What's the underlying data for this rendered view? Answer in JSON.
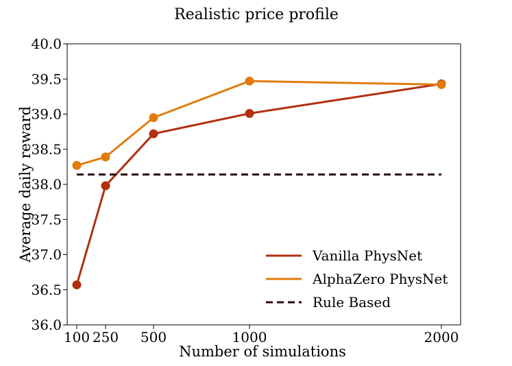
{
  "chart_data": {
    "type": "line",
    "title": "Realistic price profile",
    "xlabel": "Number of simulations",
    "ylabel": "Average daily reward",
    "x": [
      100,
      250,
      500,
      1000,
      2000
    ],
    "x_tick_labels": [
      "100",
      "250",
      "500",
      "1000",
      "2000"
    ],
    "xlim": [
      50,
      2100
    ],
    "ylim": [
      36.0,
      40.0
    ],
    "y_ticks": [
      36.0,
      36.5,
      37.0,
      37.5,
      38.0,
      38.5,
      39.0,
      39.5,
      40.0
    ],
    "y_tick_labels": [
      "36.0",
      "36.5",
      "37.0",
      "37.5",
      "38.0",
      "38.5",
      "39.0",
      "39.5",
      "40.0"
    ],
    "grid": false,
    "legend_position": "lower-right",
    "series": [
      {
        "name": "Vanilla PhysNet",
        "color": "#b0300f",
        "style": "solid",
        "marker": "circle",
        "values": [
          36.57,
          37.98,
          38.72,
          39.01,
          39.43
        ]
      },
      {
        "name": "AlphaZero PhysNet",
        "color": "#e07b0c",
        "style": "solid",
        "marker": "circle",
        "values": [
          38.27,
          38.39,
          38.95,
          39.47,
          39.42
        ]
      },
      {
        "name": "Rule Based",
        "color": "#2a0a05",
        "style": "dashed",
        "marker": "none",
        "values": [
          38.14,
          38.14,
          38.14,
          38.14,
          38.14
        ]
      }
    ]
  }
}
